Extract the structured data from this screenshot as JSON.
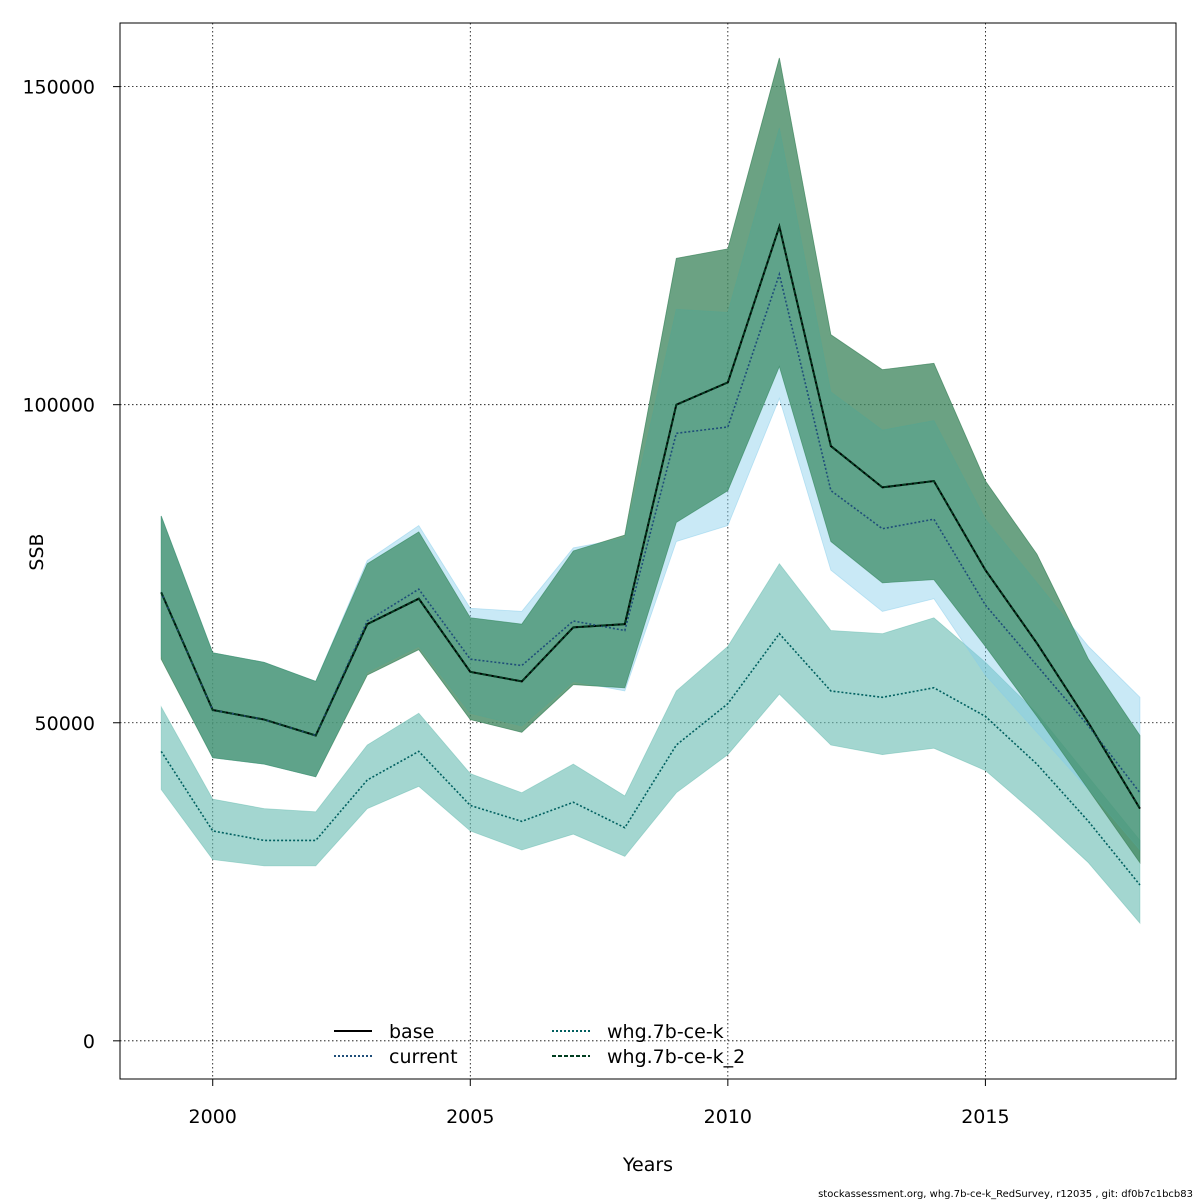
{
  "chart_data": {
    "type": "line",
    "xlabel": "Years",
    "ylabel": "SSB",
    "xlim": [
      1998.2,
      2018.7
    ],
    "ylim": [
      -6000,
      160000
    ],
    "x_ticks": [
      2000,
      2005,
      2010,
      2015
    ],
    "x_tick_labels": [
      "2000",
      "2005",
      "2010",
      "2015"
    ],
    "y_ticks": [
      0,
      50000,
      100000,
      150000
    ],
    "y_tick_labels": [
      "0",
      "50000",
      "100000",
      "150000"
    ],
    "grid": true,
    "legend_position": "bottom",
    "footer": "stockassessment.org, whg.7b-ce-k_RedSurvey, r12035 , git: df0b7c1bcb83",
    "x": [
      1999,
      2000,
      2001,
      2002,
      2003,
      2004,
      2005,
      2006,
      2007,
      2008,
      2009,
      2010,
      2011,
      2012,
      2013,
      2014,
      2015,
      2016,
      2017,
      2018
    ],
    "series": [
      {
        "name": "base",
        "line_style": "solid",
        "line_color": "#000000",
        "band_color": "#7f7f7f",
        "values": [
          70500,
          52000,
          50500,
          48000,
          65500,
          69500,
          58000,
          56500,
          65000,
          65500,
          100000,
          103500,
          128000,
          93500,
          87000,
          88000,
          74000,
          62500,
          50000,
          36500
        ],
        "lower": [
          60000,
          44500,
          43500,
          41500,
          57500,
          61500,
          50500,
          48500,
          56000,
          55500,
          81500,
          86500,
          106000,
          78500,
          72000,
          72500,
          62000,
          51000,
          39500,
          28000
        ],
        "upper": [
          82500,
          61000,
          59500,
          56500,
          75000,
          80000,
          66500,
          65500,
          77000,
          79500,
          123000,
          124500,
          154500,
          111000,
          105500,
          106500,
          88000,
          76500,
          60000,
          48000
        ]
      },
      {
        "name": "current",
        "line_style": "dotted",
        "line_color": "#1f4e79",
        "band_color": "#87ceeb",
        "values": [
          70500,
          52000,
          50500,
          48000,
          66000,
          71000,
          60000,
          59000,
          66000,
          64500,
          95500,
          96500,
          120500,
          86500,
          80500,
          82000,
          68500,
          59000,
          49500,
          39000
        ],
        "lower": [
          60500,
          44500,
          43500,
          41500,
          58000,
          62000,
          51500,
          49500,
          56500,
          55000,
          78500,
          81000,
          101000,
          74000,
          67500,
          69500,
          57500,
          48500,
          39500,
          30000
        ],
        "upper": [
          82500,
          61000,
          59500,
          56500,
          75500,
          81000,
          68000,
          67500,
          77500,
          79000,
          115000,
          114500,
          143500,
          102000,
          96000,
          97500,
          82000,
          72000,
          62000,
          54000
        ]
      },
      {
        "name": "whg.7b-ce-k",
        "line_style": "dotted",
        "line_color": "#006060",
        "band_color": "#66bbb0",
        "values": [
          45500,
          33000,
          31500,
          31500,
          41000,
          45500,
          37000,
          34500,
          37500,
          33500,
          46500,
          53000,
          64000,
          55000,
          54000,
          55500,
          51000,
          43500,
          34500,
          24500
        ],
        "lower": [
          39500,
          28500,
          27500,
          27500,
          36500,
          40000,
          33000,
          30000,
          32500,
          29000,
          39000,
          45000,
          54500,
          46500,
          45000,
          46000,
          42500,
          35500,
          28000,
          18500
        ],
        "upper": [
          52500,
          38000,
          36500,
          36000,
          46500,
          51500,
          42000,
          39000,
          43500,
          38500,
          55000,
          62000,
          75000,
          64500,
          64000,
          66500,
          59500,
          51500,
          41500,
          31500
        ]
      },
      {
        "name": "whg.7b-ce-k_2",
        "line_style": "dashed",
        "line_color": "#003d1f",
        "band_color": "#2e8b57",
        "values": [
          70500,
          52000,
          50500,
          48000,
          65500,
          69500,
          58000,
          56500,
          65000,
          65500,
          100000,
          103500,
          128000,
          93500,
          87000,
          88000,
          74000,
          62500,
          50000,
          36500
        ],
        "lower": [
          60000,
          44500,
          43500,
          41500,
          57500,
          61500,
          50500,
          48500,
          56000,
          55500,
          81500,
          86500,
          106000,
          78500,
          72000,
          72500,
          62000,
          51000,
          39500,
          28000
        ],
        "upper": [
          82500,
          61000,
          59500,
          56500,
          75000,
          80000,
          66500,
          65500,
          77000,
          79500,
          123000,
          124500,
          154500,
          111000,
          105500,
          106500,
          88000,
          76500,
          60000,
          48000
        ]
      }
    ]
  }
}
